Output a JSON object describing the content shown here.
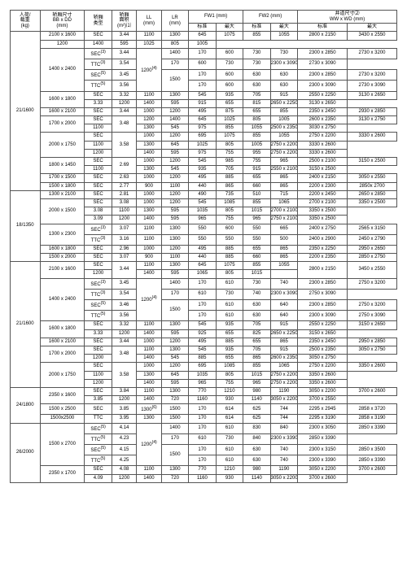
{
  "headers": {
    "load": "人荷/\n载重\n(kg)",
    "bbdd": "轿厢尺寸\nBB x DD\n(mm)",
    "type": "轿厢\n类型",
    "area": "轿厢\n面积\n(m²)⑴",
    "ll": "LL\n(mm)",
    "lr": "LR\n(mm)",
    "fw1": "FW1 (mm)",
    "fw2": "FW2 (mm)",
    "wwwd": "井道尺寸⑵\nWW x WD  (mm)",
    "std": "标准",
    "max": "最大"
  },
  "rows": [
    {
      "load": "",
      "bbdd": "2100 x 1600",
      "type": "SEC",
      "area": "3.44",
      "ll": "1100",
      "lr": "1300",
      "f1s": "645",
      "f1m": "1075",
      "f2s": "855",
      "f2m": "1055",
      "wws": "2800 x 2150",
      "wwm": "3430 x 2550",
      "rsLoad": 18,
      "rsBB": 1,
      "rsType": 1,
      "rsArea": 1,
      "showLoad": false
    },
    {
      "ll": "1200",
      "lr": "1400",
      "f1s": "595",
      "f1m": "1025",
      "f2s": "805",
      "f2m": "1005"
    },
    {
      "bbdd": "1400 x 2400",
      "type": "SEC⑶",
      "area": "3.44",
      "ll": "1200⑷",
      "lr": "1400",
      "f1s": "170",
      "f1m": "600",
      "f2s": "730",
      "f2m": "730",
      "wws": "2300 x 2850",
      "wwm": "2730 x 3200",
      "rsBB": 4,
      "rsLL": 4
    },
    {
      "type": "TTC⑶",
      "area": "3.54",
      "f1s": "170",
      "f1m": "600",
      "f2s": "730",
      "f2m": "730",
      "wws": "2300 x 3090",
      "wwm": "2730 x 3090"
    },
    {
      "type": "SEC⑸",
      "area": "3.45",
      "lr": "1500",
      "f1s": "170",
      "f1m": "600",
      "f2s": "630",
      "f2m": "630",
      "wws": "2300 x 2850",
      "wwm": "2730 x 3200",
      "rsLR": 2
    },
    {
      "type": "TTC⑸",
      "area": "3.56",
      "f1s": "170",
      "f1m": "600",
      "f2s": "630",
      "f2m": "630",
      "wws": "2300 x 3090",
      "wwm": "2730 x 3090"
    },
    {
      "load": "21/1600",
      "bbdd": "1600 x 1800",
      "type": "SEC",
      "area": "3.32",
      "ll": "1100",
      "lr": "1300",
      "f1s": "545",
      "f1m": "935",
      "f2s": "705",
      "f2m": "915",
      "wws": "2550 x 2250",
      "wwm": "3130 x 2650",
      "rsBB": 2,
      "showLoad": true
    },
    {
      "area": "3.33",
      "ll": "1200",
      "lr": "1400",
      "f1s": "595",
      "f1m": "915",
      "f2s": "655",
      "f2m": "815",
      "wws": "2650 x 2250",
      "wwm": "3130 x 2650"
    },
    {
      "bbdd": "1600 x 2100",
      "type": "SEC",
      "area": "3.44",
      "ll": "1000",
      "lr": "1200",
      "f1s": "495",
      "f1m": "875",
      "f2s": "655",
      "f2m": "855",
      "wws": "2350 x 2450",
      "wwm": "2930 x 2850"
    },
    {
      "bbdd": "1700 x 2000",
      "type": "SEC",
      "area": "3.48",
      "ll": "1200",
      "lr": "1400",
      "f1s": "645",
      "f1m": "1025",
      "f2s": "805",
      "f2m": "1005",
      "wws": "2600 x 2350",
      "wwm": "3130 x 2750",
      "rsBB": 2,
      "rsArea": 2
    },
    {
      "ll": "1100",
      "lr": "1300",
      "f1s": "545",
      "f1m": "975",
      "f2s": "855",
      "f2m": "1055",
      "wws": "2500 x 2350",
      "wwm": "3030 x 2750"
    },
    {
      "bbdd": "2000 x 1750",
      "type": "SEC",
      "area": "3.58",
      "ll": "1000",
      "lr": "1200",
      "f1s": "695",
      "f1m": "1075",
      "f2s": "855",
      "f2m": "1055",
      "wws": "2750 x 2200",
      "wwm": "3330 x 2600",
      "rsBB": 3,
      "rsArea": 3
    },
    {
      "ll": "1100",
      "lr": "1300",
      "f1s": "645",
      "f1m": "1025",
      "f2s": "805",
      "f2m": "1005",
      "wws": "2750 x 2200",
      "wwm": "3330 x 2600"
    },
    {
      "ll": "1200",
      "lr": "1400",
      "f1s": "595",
      "f1m": "975",
      "f2s": "755",
      "f2m": "955",
      "wws": "2750 x 2200",
      "wwm": "3330 x 2600"
    },
    {
      "bbdd": "1800 x 1450",
      "type": "SEC",
      "area": "2.69",
      "ll": "1000",
      "lr": "1200",
      "f1s": "545",
      "f1m": "985",
      "f2s": "755",
      "f2m": "965",
      "wws": "2500 x 2100",
      "wwm": "3150 x 2500",
      "rsBB": 2,
      "rsArea": 2,
      "rsLoad": 4,
      "showLoad": false
    },
    {
      "ll": "1100",
      "lr": "1300",
      "f1s": "545",
      "f1m": "935",
      "f2s": "705",
      "f2m": "915",
      "wws": "2550 x 2100",
      "wwm": "3150 x 2500"
    },
    {
      "load": "15/1150",
      "bbdd": "1700 x 1500",
      "type": "SEC",
      "area": "2.63",
      "ll": "1000",
      "lr": "1200",
      "f1s": "495",
      "f1m": "885",
      "f2s": "655",
      "f2m": "865",
      "wws": "2400 x 2150",
      "wwm": "3050 x 2550",
      "showLoad": true
    },
    {
      "bbdd": "1500 x 1800",
      "type": "SEC",
      "area": "2.77",
      "ll": "900",
      "lr": "1100",
      "f1s": "440",
      "f1m": "865",
      "f2s": "660",
      "f2m": "865",
      "wws": "2200 x 2300",
      "wwm": "2850x 2700"
    },
    {
      "bbdd": "1300 x 2100",
      "type": "SEC",
      "area": "2.81",
      "ll": "1000",
      "lr": "1200",
      "f1s": "490",
      "f1m": "735",
      "f2s": "510",
      "f2m": "715",
      "wws": "2200 x 2450",
      "wwm": "2650 x 2850",
      "rsLoad": 8,
      "showLoad": false
    },
    {
      "bbdd": "2000 x 1500",
      "type": "SEC",
      "area": "3.08",
      "ll": "1000",
      "lr": "1200",
      "f1s": "545",
      "f1m": "1085",
      "f2s": "855",
      "f2m": "1065",
      "wws": "2700 x 2100",
      "wwm": "3350 x 2500",
      "rsBB": 3
    },
    {
      "area": "3.08",
      "ll": "1100",
      "lr": "1300",
      "f1s": "595",
      "f1m": "1035",
      "f2s": "805",
      "f2m": "1015",
      "wws": "2700 x 2100",
      "wwm": "3350 x 2500"
    },
    {
      "load": "18/1350",
      "area": "3.09",
      "ll": "1200",
      "lr": "1400",
      "f1s": "595",
      "f1m": "965",
      "f2s": "755",
      "f2m": "965",
      "wws": "2750 x 2100",
      "wwm": "3350 x 2500",
      "showLoad": true
    },
    {
      "bbdd": "1300 x 2300",
      "type": "SEC⑶",
      "area": "3.07",
      "ll": "1100",
      "lr": "1300",
      "f1s": "550",
      "f1m": "600",
      "f2s": "550",
      "f2m": "665",
      "wws": "2400 x 2750",
      "wwm": "2565 x 3150",
      "rsBB": 2
    },
    {
      "type": "TTC⑶",
      "area": "3.16",
      "ll": "1100",
      "lr": "1300",
      "f1s": "550",
      "f1m": "550",
      "f2s": "550",
      "f2m": "500",
      "wws": "2400 x 2900",
      "wwm": "2450 x 2790"
    },
    {
      "bbdd": "1600 x 1800",
      "type": "SEC",
      "area": "2.96",
      "ll": "1000",
      "lr": "1200",
      "f1s": "495",
      "f1m": "885",
      "f2s": "655",
      "f2m": "865",
      "wws": "2350 x 2250",
      "wwm": "2950 x 2650"
    },
    {
      "bbdd": "1500 x 2000",
      "type": "SEC",
      "area": "3.07",
      "ll": "900",
      "lr": "1100",
      "f1s": "440",
      "f1m": "885",
      "f2s": "660",
      "f2m": "865",
      "wws": "2200 x 2350",
      "wwm": "2850 x 2750"
    },
    {
      "bbdd": "2100 x 1600",
      "type": "SEC",
      "area": "3.44",
      "ll": "1100",
      "lr": "1300",
      "f1s": "645",
      "f1m": "1075",
      "f2s": "855",
      "f2m": "1055",
      "wws": "2800 x 2150",
      "wwm": "3450 x 2550",
      "rsBB": 2,
      "rsArea": 2,
      "rsLoad": 14,
      "rsWW": 2,
      "showLoad": false
    },
    {
      "ll": "1200",
      "lr": "1400",
      "f1s": "595",
      "f1m": "1065",
      "f2s": "805",
      "f2m": "1015"
    },
    {
      "bbdd": "1400 x 2400",
      "type": "SEC⑶",
      "area": "3.45",
      "ll": "1200⑷",
      "lr": "1400",
      "f1s": "170",
      "f1m": "610",
      "f2s": "730",
      "f2m": "740",
      "wws": "2300 x 2850",
      "wwm": "2750 x 3200",
      "rsBB": 4,
      "rsLL": 4
    },
    {
      "type": "TTC⑶",
      "area": "3.54",
      "f1s": "170",
      "f1m": "610",
      "f2s": "730",
      "f2m": "740",
      "wws": "2300 x 3090",
      "wwm": "2750 x 3090"
    },
    {
      "type": "SEC⑸",
      "area": "3.46",
      "lr": "1500",
      "f1s": "170",
      "f1m": "610",
      "f2s": "630",
      "f2m": "640",
      "wws": "2300 x 2850",
      "wwm": "2750 x 3200",
      "rsLR": 2
    },
    {
      "type": "TTC⑸",
      "area": "3.56",
      "f1s": "170",
      "f1m": "610",
      "f2s": "630",
      "f2m": "640",
      "wws": "2300 x 3090",
      "wwm": "2750 x 3090"
    },
    {
      "load": "21/1600",
      "bbdd": "1600 x 1800",
      "type": "SEC",
      "area": "3.32",
      "ll": "1100",
      "lr": "1300",
      "f1s": "545",
      "f1m": "935",
      "f2s": "705",
      "f2m": "915",
      "wws": "2550 x 2250",
      "wwm": "3150 x 2650",
      "rsBB": 2,
      "showLoad": true
    },
    {
      "area": "3.33",
      "ll": "1200",
      "lr": "1400",
      "f1s": "595",
      "f1m": "925",
      "f2s": "655",
      "f2m": "825",
      "wws": "2650 x 2250",
      "wwm": "3150 x 2650"
    },
    {
      "bbdd": "1600 x 2100",
      "type": "SEC",
      "area": "3.44",
      "ll": "1000",
      "lr": "1200",
      "f1s": "495",
      "f1m": "885",
      "f2s": "655",
      "f2m": "865",
      "wws": "2350 x 2450",
      "wwm": "2950 x 2850"
    },
    {
      "bbdd": "1700 x 2000",
      "type": "SEC",
      "area": "3.48",
      "ll": "1100",
      "lr": "1300",
      "f1s": "545",
      "f1m": "935",
      "f2s": "705",
      "f2m": "915",
      "wws": "2500 x 2350",
      "wwm": "3050 x 2750",
      "rsBB": 2,
      "rsArea": 2
    },
    {
      "ll": "1200",
      "lr": "1400",
      "f1s": "545",
      "f1m": "885",
      "f2s": "655",
      "f2m": "865",
      "wws": "2600 x 2350",
      "wwm": "3050 x 2750"
    },
    {
      "bbdd": "2000 x 1750",
      "type": "SEC",
      "area": "3.58",
      "ll": "1000",
      "lr": "1200",
      "f1s": "695",
      "f1m": "1085",
      "f2s": "855",
      "f2m": "1065",
      "wws": "2750 x 2200",
      "wwm": "3350 x 2600",
      "rsBB": 3,
      "rsArea": 3
    },
    {
      "ll": "1100",
      "lr": "1300",
      "f1s": "645",
      "f1m": "1035",
      "f2s": "805",
      "f2m": "1015",
      "wws": "2750 x 2200",
      "wwm": "3350 x 2600"
    },
    {
      "ll": "1200",
      "lr": "1400",
      "f1s": "595",
      "f1m": "965",
      "f2s": "755",
      "f2m": "965",
      "wws": "2750 x 2200",
      "wwm": "3350 x 2600"
    },
    {
      "bbdd": "2350 x 1600",
      "type": "SEC",
      "area": "3.84",
      "ll": "1100",
      "lr": "1300",
      "f1s": "770",
      "f1m": "1210",
      "f2s": "980",
      "f2m": "1190",
      "wws": "3050 x 2200",
      "wwm": "3700 x 2600",
      "rsLoad": 4,
      "rsBB": 2,
      "showLoad": false
    },
    {
      "load": "24/1800",
      "area": "3.85",
      "ll": "1200",
      "lr": "1400",
      "f1s": "720",
      "f1m": "1160",
      "f2s": "930",
      "f2m": "1140",
      "wws": "3050 x 2200",
      "wwm": "3700 x 2550",
      "showLoad": true
    },
    {
      "bbdd": "1500 x 2500",
      "type": "SEC",
      "area": "3.85",
      "ll": "1300⑹",
      "lr": "1500",
      "f1s": "170",
      "f1m": "614",
      "f2s": "625",
      "f2m": "744",
      "wws": "2295 x 2945",
      "wwm": "2858 x 3720"
    },
    {
      "bbdd": "1500x2500",
      "type": "TTC",
      "area": "3.95",
      "ll": "1300",
      "lr": "1500",
      "f1s": "170",
      "f1m": "614",
      "f2s": "625",
      "f2m": "744",
      "wws": "2295 x 3190",
      "wwm": "2858 x 3190"
    },
    {
      "bbdd": "1500 x 2700",
      "type": "SEC⑸",
      "area": "4.14",
      "ll": "1200⑷",
      "lr": "1400",
      "f1s": "170",
      "f1m": "610",
      "f2s": "830",
      "f2m": "840",
      "wws": "2300 x 3050",
      "wwm": "2850 x 3390",
      "rsBB": 4,
      "rsLL": 4,
      "rsLoad": 6,
      "showLoad": false
    },
    {
      "type": "TTC⑸",
      "area": "4.23",
      "f1s": "170",
      "f1m": "610",
      "f2s": "730",
      "f2m": "840",
      "wws": "2300 x 3390",
      "wwm": "2850 x 3390"
    },
    {
      "load": "26/2000",
      "type": "SEC⑸",
      "area": "4.15",
      "lr": "1500",
      "f1s": "170",
      "f1m": "610",
      "f2s": "630",
      "f2m": "740",
      "wws": "2300 x 3150",
      "wwm": "2850 x 3500",
      "rsLR": 2,
      "showLoad": true
    },
    {
      "type": "TTC⑸",
      "area": "4.25",
      "f1s": "170",
      "f1m": "610",
      "f2s": "630",
      "f2m": "740",
      "wws": "2300 x 3390",
      "wwm": "2850 x 3390"
    },
    {
      "bbdd": "2350 x 1700",
      "type": "SEC",
      "area": "4.08",
      "ll": "1100",
      "lr": "1300",
      "f1s": "770",
      "f1m": "1210",
      "f2s": "980",
      "f2m": "1190",
      "wws": "3050 x 2200",
      "wwm": "3700 x 2600",
      "rsBB": 2
    },
    {
      "area": "4.09",
      "ll": "1200",
      "lr": "1400",
      "f1s": "720",
      "f1m": "1160",
      "f2s": "930",
      "f2m": "1140",
      "wws": "3050 x 2200",
      "wwm": "3700 x 2600"
    }
  ]
}
